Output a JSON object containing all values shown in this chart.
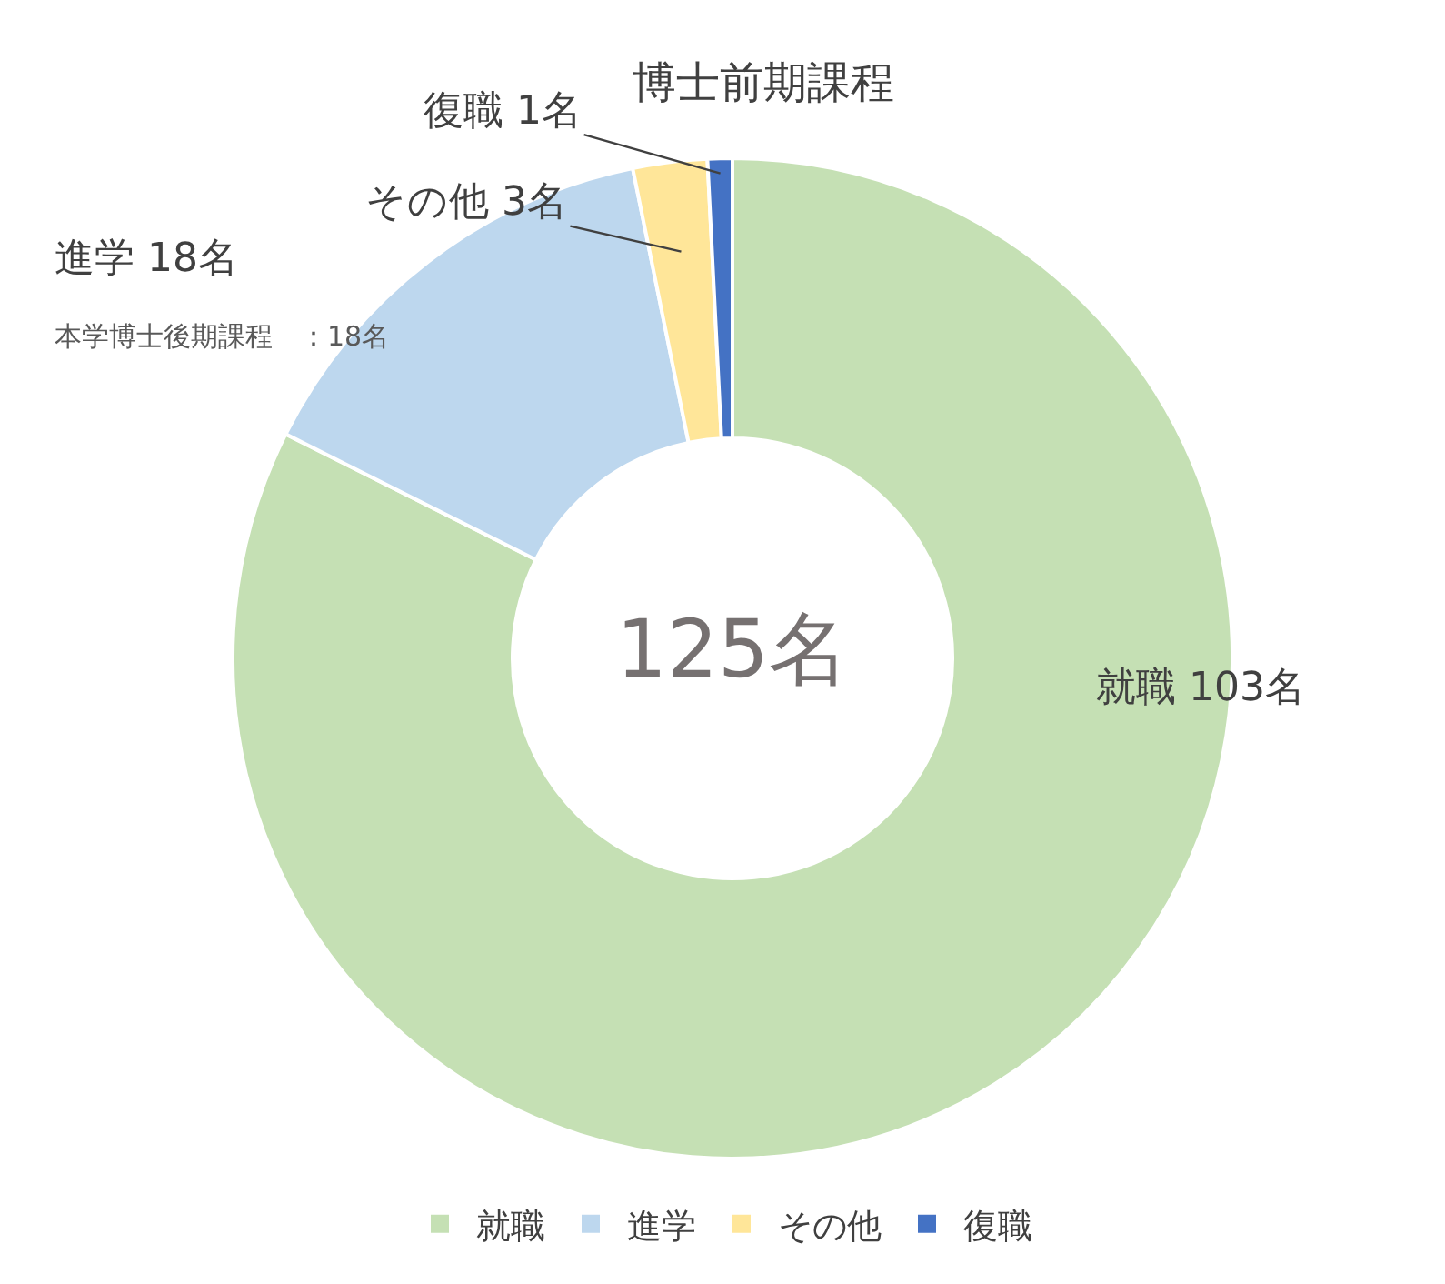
{
  "chart_data": {
    "type": "donut",
    "title": "博士前期課程",
    "categories": [
      "就職",
      "進学",
      "その他",
      "復職"
    ],
    "values": [
      103,
      18,
      3,
      1
    ],
    "colors": [
      "#c5e0b4",
      "#bdd7ee",
      "#ffe699",
      "#4472c4"
    ],
    "value_labels": [
      "就職 103名",
      "進学 18名",
      "その他 3名",
      "復職 1名"
    ],
    "annotations": [
      "125名",
      "本学博士後期課程　：18名"
    ],
    "legend": "bottom"
  }
}
